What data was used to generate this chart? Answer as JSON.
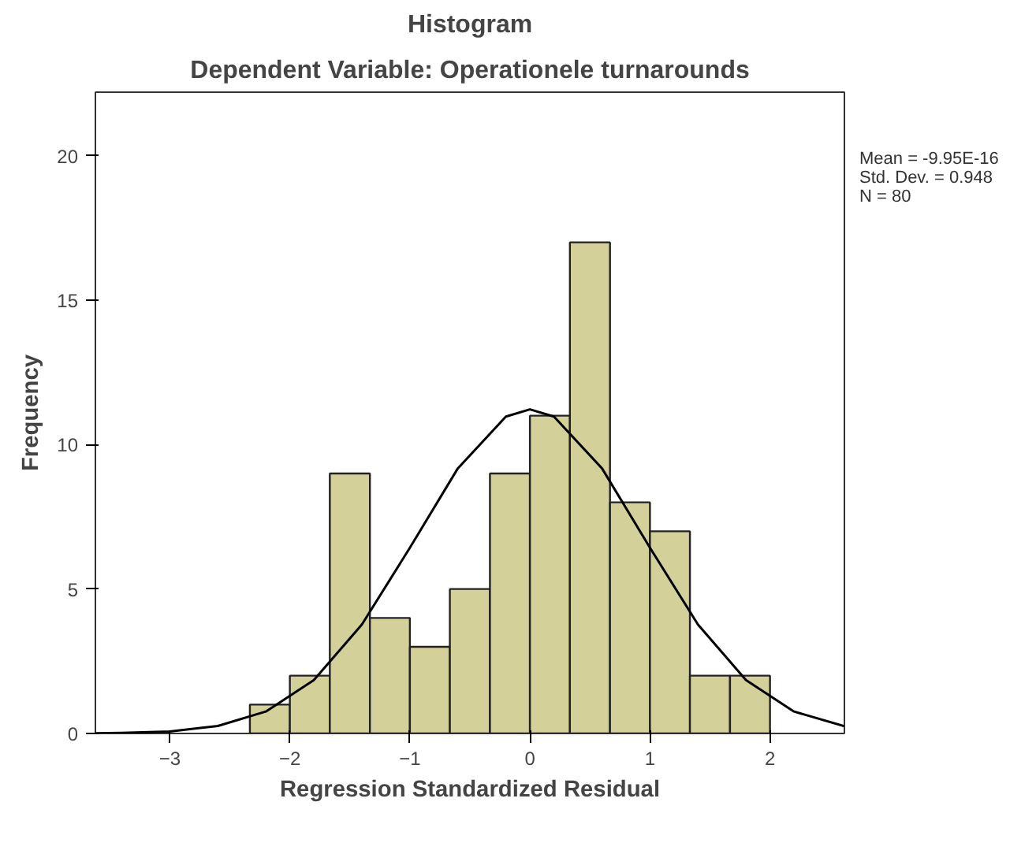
{
  "chart_data": {
    "type": "histogram",
    "title": "Histogram",
    "subtitle": "Dependent Variable: Operationele turnarounds",
    "xlabel": "Regression Standardized Residual",
    "ylabel": "Frequency",
    "bins": [
      -2.333,
      -2.0,
      -1.667,
      -1.333,
      -1.0,
      -0.667,
      -0.333,
      0.0,
      0.333,
      0.667,
      1.0,
      1.333,
      1.667,
      2.0
    ],
    "values": [
      1,
      2,
      9,
      4,
      3,
      5,
      9,
      11,
      17,
      8,
      7,
      2,
      2
    ],
    "color": "#d4d09a",
    "series": [
      {
        "type": "line",
        "color": "#000000",
        "x": [
          -3.62,
          -3.4,
          -3.0,
          -2.6,
          -2.2,
          -1.8,
          -1.4,
          -1.0,
          -0.6,
          -0.2,
          0.0,
          0.2,
          0.6,
          1.0,
          1.4,
          1.8,
          2.2,
          2.62
        ],
        "values": [
          0.01,
          0.02,
          0.07,
          0.26,
          0.76,
          1.85,
          3.77,
          6.43,
          9.18,
          10.97,
          11.22,
          10.97,
          9.18,
          6.43,
          3.77,
          1.85,
          0.76,
          0.25
        ]
      }
    ],
    "xlim": [
      -3.62,
      2.62
    ],
    "ylim": [
      0,
      22.2
    ],
    "xticks": [
      -3,
      -2,
      -1,
      0,
      1,
      2
    ],
    "yticks": [
      0,
      5,
      10,
      15,
      20
    ],
    "grid": false,
    "annotations": [
      "Mean = -9.95E-16",
      "Std. Dev. = 0.948",
      "N = 80"
    ]
  }
}
